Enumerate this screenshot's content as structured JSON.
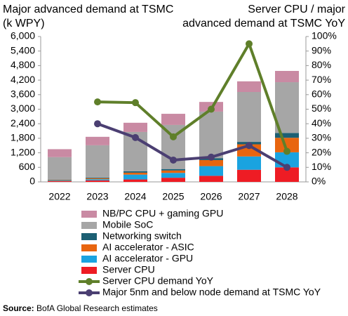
{
  "chart_data": {
    "type": "bar",
    "stacked": true,
    "y_label": [
      "Major advanced demand at TSMC",
      "(k WPY)"
    ],
    "y2_label": [
      "Server CPU / major",
      "advanced demand at TSMC YoY"
    ],
    "categories": [
      "2022",
      "2023",
      "2024",
      "2025",
      "2026",
      "2027",
      "2028"
    ],
    "series": [
      {
        "name": "NB/PC CPU + gaming GPU",
        "color": "#c98aa3",
        "type": "bar",
        "values": [
          330,
          350,
          380,
          460,
          400,
          440,
          465
        ]
      },
      {
        "name": "Mobile SoC",
        "color": "#a6a6a6",
        "type": "bar",
        "values": [
          930,
          1330,
          1620,
          1820,
          1920,
          2060,
          2095
        ]
      },
      {
        "name": "Networking switch",
        "color": "#1c5f73",
        "type": "bar",
        "values": [
          20,
          30,
          60,
          60,
          80,
          100,
          200
        ]
      },
      {
        "name": "AI accelerator - ASIC",
        "color": "#e8650f",
        "type": "bar",
        "values": [
          20,
          40,
          80,
          100,
          250,
          500,
          600
        ]
      },
      {
        "name": "AI accelerator - GPU",
        "color": "#1aa3e0",
        "type": "bar",
        "values": [
          20,
          50,
          200,
          200,
          400,
          550,
          620
        ]
      },
      {
        "name": "Server CPU",
        "color": "#ee1c24",
        "type": "bar",
        "values": [
          30,
          60,
          100,
          170,
          250,
          500,
          600
        ]
      },
      {
        "name": "Server CPU demand YoY",
        "color": "#5f7f2a",
        "type": "line",
        "axis": "y2",
        "values": [
          null,
          55,
          54.5,
          31,
          50,
          95,
          21
        ]
      },
      {
        "name": "Major 5nm and below node demand at TSMC YoY",
        "color": "#4b3f72",
        "type": "line",
        "axis": "y2",
        "values": [
          null,
          40,
          30.5,
          15,
          17,
          25,
          10
        ]
      }
    ],
    "ylim": [
      0,
      6000
    ],
    "yticks": [
      0,
      600,
      {
        "value": 1200,
        "label": "1,200"
      },
      {
        "value": 1800,
        "label": "1,800"
      },
      {
        "value": 2400,
        "label": "2,400"
      },
      {
        "value": 3000,
        "label": "3,000"
      },
      {
        "value": 3600,
        "label": "3,600"
      },
      {
        "value": 4200,
        "label": "4,200"
      },
      {
        "value": 4800,
        "label": "4,800"
      },
      {
        "value": 5400,
        "label": "5,400"
      },
      {
        "value": 6000,
        "label": "6,000"
      }
    ],
    "y2lim": [
      0,
      100
    ],
    "y2ticks": [
      {
        "value": 0,
        "label": "0%"
      },
      {
        "value": 10,
        "label": "10%"
      },
      {
        "value": 20,
        "label": "20%"
      },
      {
        "value": 30,
        "label": "30%"
      },
      {
        "value": 40,
        "label": "40%"
      },
      {
        "value": 50,
        "label": "50%"
      },
      {
        "value": 60,
        "label": "60%"
      },
      {
        "value": 70,
        "label": "70%"
      },
      {
        "value": 80,
        "label": "80%"
      },
      {
        "value": 90,
        "label": "90%"
      },
      {
        "value": 100,
        "label": "100%"
      }
    ],
    "grid": false,
    "legend": "bottom",
    "source_label": "Source:",
    "source": "BofA Global Research estimates"
  }
}
